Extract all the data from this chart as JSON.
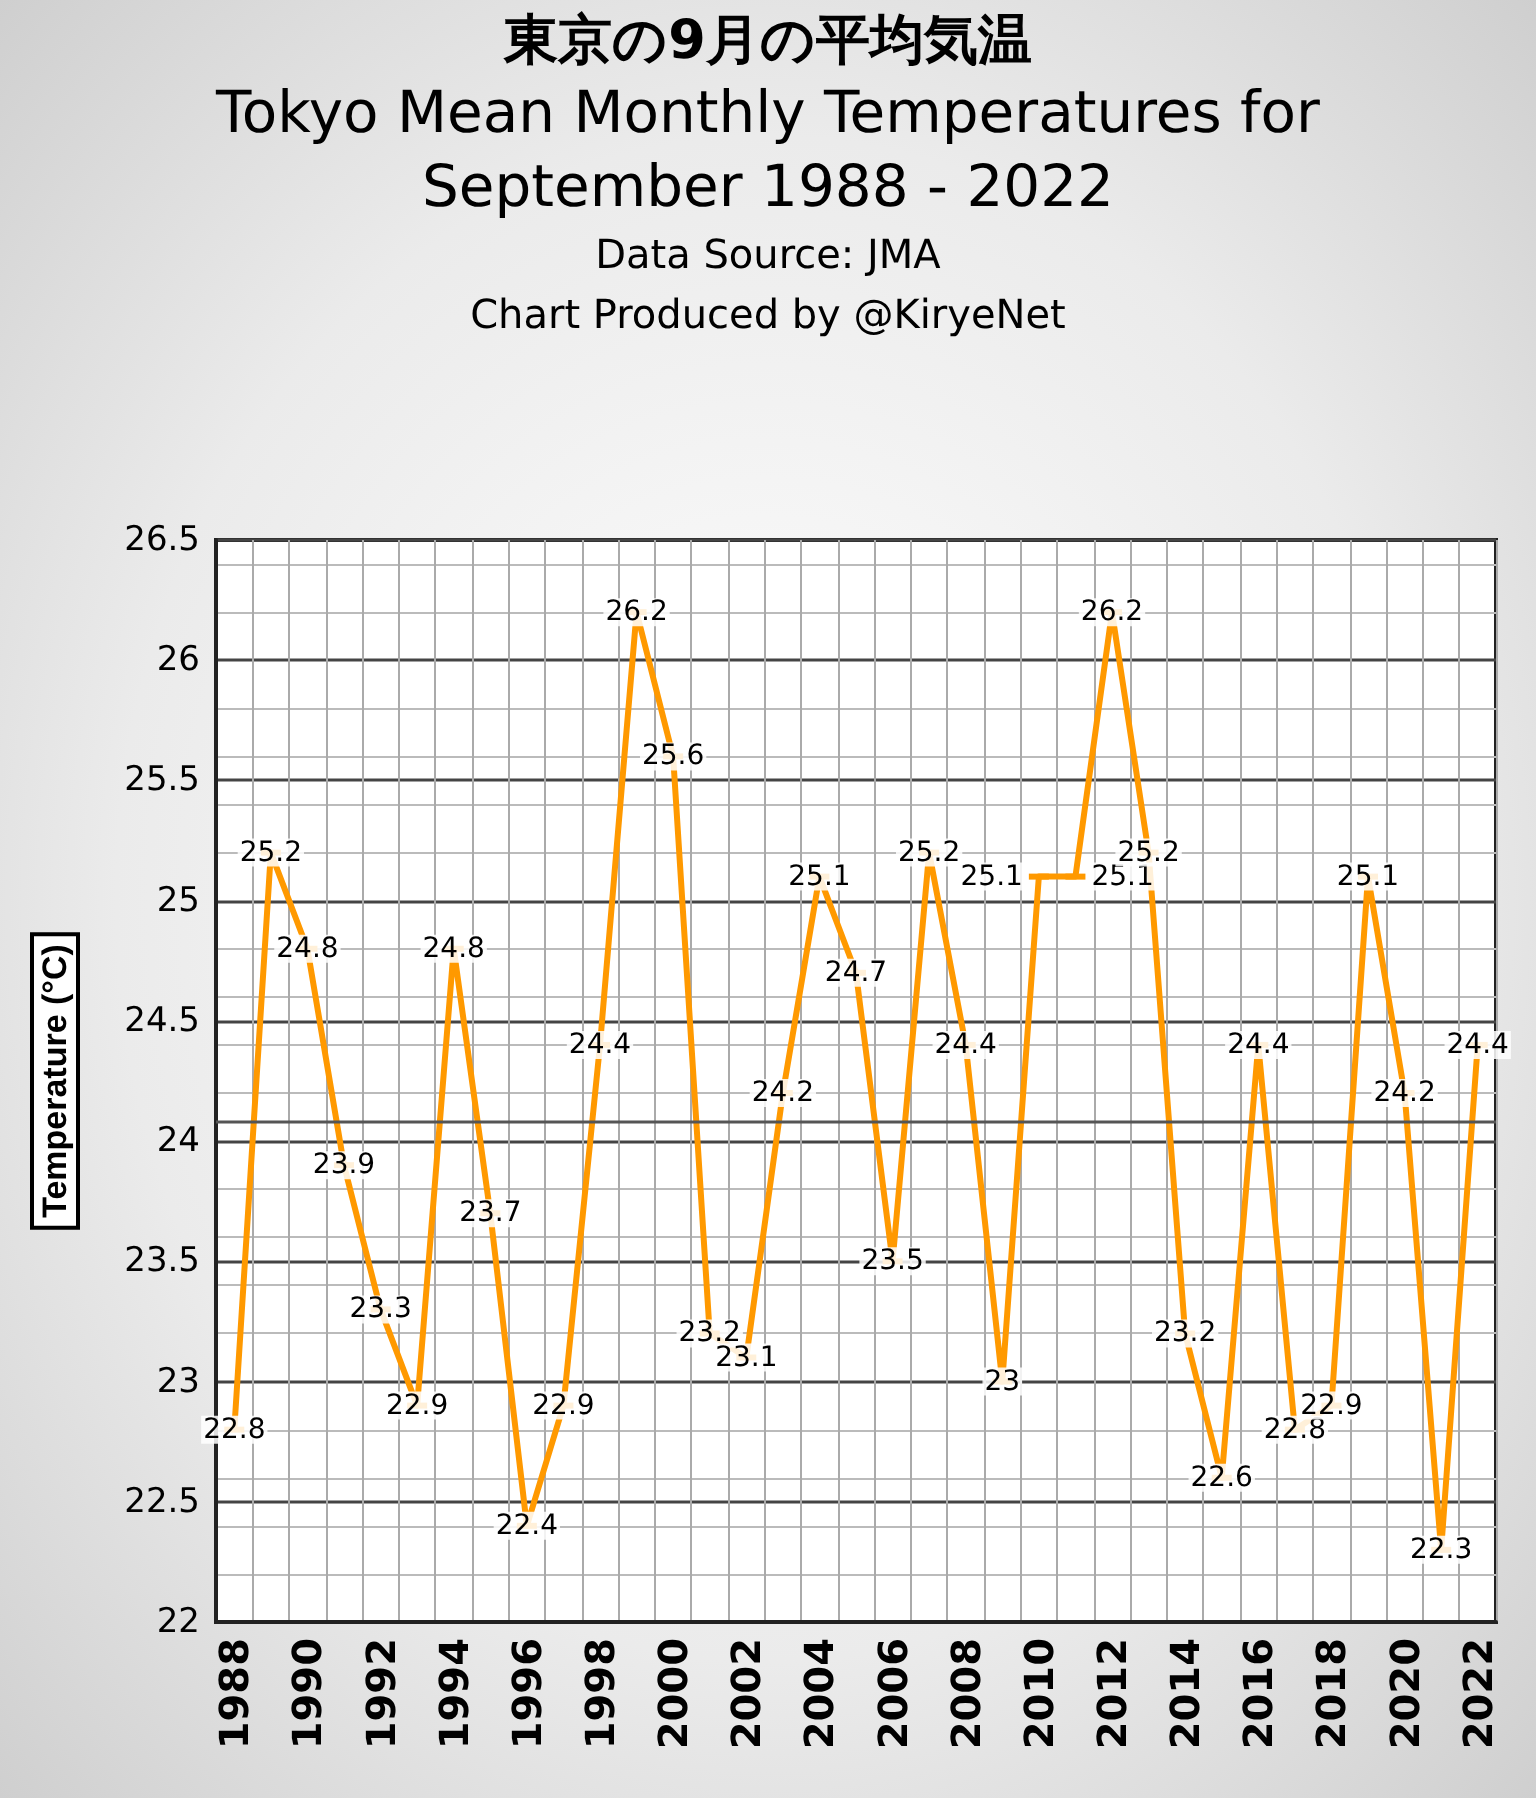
{
  "chart_data": {
    "type": "line",
    "title": "東京の9月の平均気温",
    "subtitle": "Tokyo Mean Monthly Temperatures for September 1988 - 2022",
    "annotations": [
      "Data Source: JMA",
      "Chart Produced by @KiryeNet"
    ],
    "ylabel": "Temperature (°C)",
    "categories": [
      "1988",
      null,
      "1990",
      null,
      "1992",
      null,
      "1994",
      null,
      "1996",
      null,
      "1998",
      null,
      "2000",
      null,
      "2002",
      null,
      "2004",
      null,
      "2006",
      null,
      "2008",
      null,
      "2010",
      null,
      "2012",
      null,
      "2014",
      null,
      "2016",
      null,
      "2018",
      null,
      "2020",
      null,
      "2022"
    ],
    "series": [
      {
        "color": "#ff9900",
        "values": [
          22.8,
          25.2,
          24.8,
          23.9,
          23.3,
          22.9,
          24.8,
          23.7,
          22.4,
          22.9,
          24.4,
          26.2,
          25.6,
          23.2,
          23.1,
          24.2,
          25.1,
          24.7,
          23.5,
          25.2,
          24.4,
          23,
          25.1,
          25.1,
          26.2,
          25.2,
          23.2,
          22.6,
          24.4,
          22.8,
          22.9,
          25.1,
          24.2,
          22.3,
          24.4
        ]
      }
    ],
    "ylim": [
      22,
      26.5
    ],
    "yticks": [
      22,
      22.5,
      23,
      23.5,
      24,
      24.5,
      25,
      25.5,
      26,
      26.5
    ],
    "ref_lines": [
      {
        "axis": "y",
        "value": 24.08,
        "color": "#555555"
      }
    ],
    "data_labels": true,
    "marker": "square",
    "grid": true,
    "line_style": "solid"
  }
}
